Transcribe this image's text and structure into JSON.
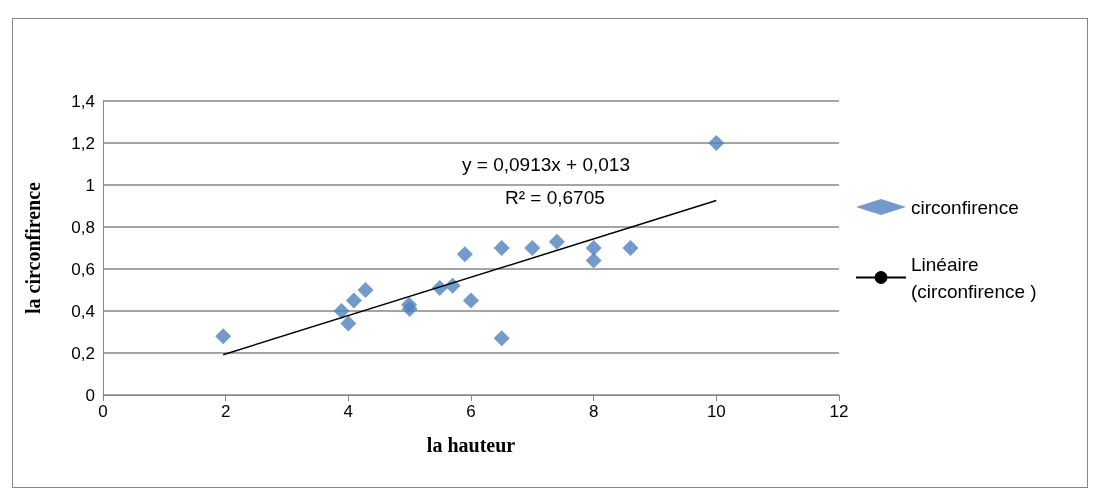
{
  "chart_data": {
    "type": "scatter",
    "xlabel": "la hauteur",
    "ylabel": "la circonfirence",
    "xlim": [
      0,
      12
    ],
    "xticks": [
      0,
      2,
      4,
      6,
      8,
      10,
      12
    ],
    "ylim": [
      0,
      1.4
    ],
    "yticks": [
      0,
      {
        "value": 0.2,
        "label": "0,2"
      },
      {
        "value": 0.4,
        "label": "0,4"
      },
      {
        "value": 0.6,
        "label": "0,6"
      },
      {
        "value": 0.8,
        "label": "0,8"
      },
      1,
      {
        "value": 1.2,
        "label": "1,2"
      },
      {
        "value": 1.4,
        "label": "1,4"
      }
    ],
    "grid": "y",
    "legend": "right",
    "marker": "diamond",
    "annotations": [
      "y = 0,0913x + 0,013",
      "R² = 0,6705"
    ],
    "series": [
      {
        "name": "circonfirence",
        "color": "#4f81bd",
        "x": [
          1.96,
          3.89,
          4.0,
          4.09,
          4.28,
          4.99,
          5.0,
          5.49,
          5.7,
          5.9,
          6.0,
          6.5,
          6.5,
          7.0,
          7.4,
          8.0,
          8.0,
          8.6,
          10
        ],
        "values": [
          0.28,
          0.4,
          0.34,
          0.45,
          0.5,
          0.43,
          0.41,
          0.51,
          0.52,
          0.67,
          0.45,
          0.7,
          0.27,
          0.7,
          0.73,
          0.7,
          0.64,
          0.7,
          1.2
        ]
      },
      {
        "name": "Linéaire (circonfirence )",
        "type": "line",
        "color": "#000000",
        "marker": "none",
        "x": [
          1.96,
          10
        ],
        "values": [
          0.192,
          0.926
        ]
      }
    ]
  }
}
